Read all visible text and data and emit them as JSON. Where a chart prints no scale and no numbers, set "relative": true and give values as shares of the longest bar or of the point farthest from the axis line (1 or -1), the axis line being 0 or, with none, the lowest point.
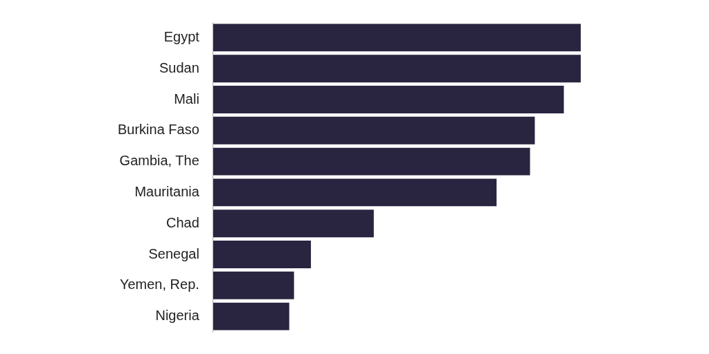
{
  "chart_data": {
    "type": "bar",
    "orientation": "horizontal",
    "relative": true,
    "categories": [
      "Egypt",
      "Sudan",
      "Mali",
      "Burkina Faso",
      "Gambia, The",
      "Mauritania",
      "Chad",
      "Senegal",
      "Yemen, Rep.",
      "Nigeria"
    ],
    "values": [
      1,
      1,
      0.954,
      0.875,
      0.862,
      0.771,
      0.437,
      0.266,
      0.22,
      0.207
    ],
    "color": "#29243f"
  }
}
